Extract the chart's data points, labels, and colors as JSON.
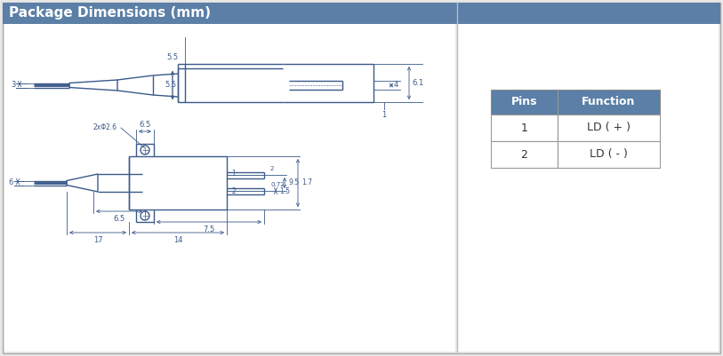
{
  "title": "Package Dimensions (mm)",
  "title_bg": "#5b7fa6",
  "title_color": "#ffffff",
  "bg_color": "#e8e8e8",
  "drawing_bg": "#ffffff",
  "line_color": "#3a5a8a",
  "dim_color": "#3a5a8a",
  "table": {
    "header_bg": "#5b7fa6",
    "header_color": "#ffffff",
    "cols": [
      "Pins",
      "Function"
    ],
    "rows": [
      [
        "1",
        "LD ( + )"
      ],
      [
        "2",
        "LD ( - )"
      ]
    ]
  }
}
